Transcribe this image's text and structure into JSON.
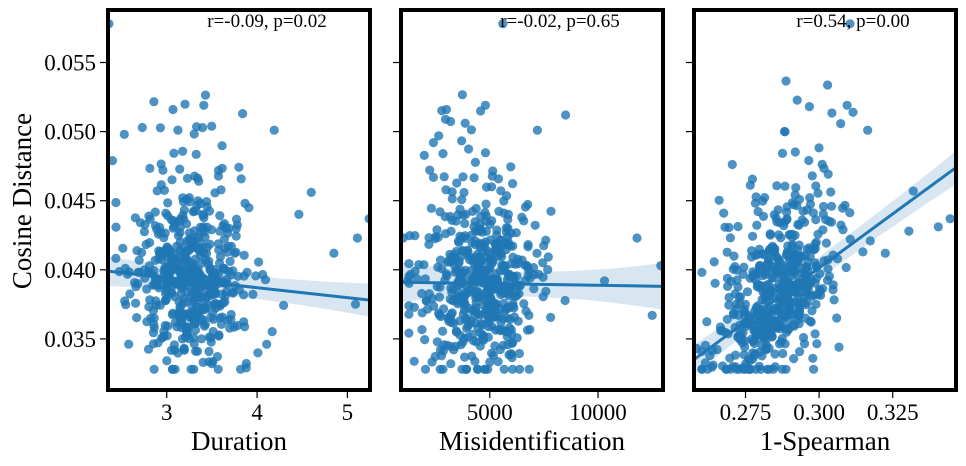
{
  "chart_data": {
    "type": "scatter",
    "ylabel": "Cosine Distance",
    "y_ticks": [
      "0.035",
      "0.040",
      "0.045",
      "0.050",
      "0.055"
    ],
    "ylim": [
      0.0313,
      0.0588
    ],
    "shared_y": true,
    "color": "#1f77b4",
    "ci_color": "#1f77b4",
    "grid": false,
    "panels": [
      {
        "xlabel": "Duration",
        "annotation": "r=-0.09, p=0.02",
        "xlim": [
          2.35,
          5.25
        ],
        "x_ticks": [
          "3",
          "4",
          "5"
        ],
        "x_tick_values": [
          3,
          4,
          5
        ],
        "regression": {
          "x": [
            2.35,
            5.25
          ],
          "y": [
            0.0399,
            0.0378
          ],
          "ci_halfwidth": [
            0.0008,
            0.0012
          ]
        },
        "n_points": 520,
        "outliers": [
          {
            "x": 2.36,
            "y": 0.0578
          },
          {
            "x": 3.41,
            "y": 0.0519
          },
          {
            "x": 3.07,
            "y": 0.0516
          },
          {
            "x": 3.84,
            "y": 0.0513
          },
          {
            "x": 2.73,
            "y": 0.0503
          },
          {
            "x": 4.19,
            "y": 0.0501
          },
          {
            "x": 2.53,
            "y": 0.0498
          },
          {
            "x": 2.4,
            "y": 0.0479
          },
          {
            "x": 4.6,
            "y": 0.0456
          },
          {
            "x": 5.24,
            "y": 0.0437
          },
          {
            "x": 5.11,
            "y": 0.0423
          },
          {
            "x": 4.85,
            "y": 0.0412
          },
          {
            "x": 5.09,
            "y": 0.0375
          },
          {
            "x": 3.88,
            "y": 0.0329
          },
          {
            "x": 3.5,
            "y": 0.0332
          }
        ]
      },
      {
        "xlabel": "Misidentification",
        "annotation": "r=-0.02, p=0.65",
        "xlim": [
          900,
          13000
        ],
        "x_ticks": [
          "5000",
          "10000"
        ],
        "x_tick_values": [
          5000,
          10000
        ],
        "regression": {
          "x": [
            900,
            13000
          ],
          "y": [
            0.0391,
            0.0388
          ],
          "ci_halfwidth": [
            0.0009,
            0.0017
          ]
        },
        "n_points": 520,
        "outliers": [
          {
            "x": 5600,
            "y": 0.0578
          },
          {
            "x": 4800,
            "y": 0.0519
          },
          {
            "x": 8500,
            "y": 0.0512
          },
          {
            "x": 7200,
            "y": 0.0501
          },
          {
            "x": 3000,
            "y": 0.0516
          },
          {
            "x": 1000,
            "y": 0.0423
          },
          {
            "x": 11800,
            "y": 0.0423
          },
          {
            "x": 12900,
            "y": 0.0403
          },
          {
            "x": 12500,
            "y": 0.0367
          },
          {
            "x": 10300,
            "y": 0.0392
          },
          {
            "x": 1200,
            "y": 0.0392
          },
          {
            "x": 3200,
            "y": 0.0332
          }
        ]
      },
      {
        "xlabel": "1-Spearman",
        "annotation": "r=0.54, p=0.00",
        "xlim": [
          0.2575,
          0.3465
        ],
        "x_ticks": [
          "0.275",
          "0.300",
          "0.325"
        ],
        "x_tick_values": [
          0.275,
          0.3,
          0.325
        ],
        "regression": {
          "x": [
            0.2575,
            0.3465
          ],
          "y": [
            0.0335,
            0.0474
          ],
          "ci_halfwidth": [
            0.0008,
            0.0012
          ]
        },
        "n_points": 520,
        "outliers": [
          {
            "x": 0.3105,
            "y": 0.0578
          },
          {
            "x": 0.3095,
            "y": 0.0519
          },
          {
            "x": 0.3115,
            "y": 0.0514
          },
          {
            "x": 0.3165,
            "y": 0.0501
          },
          {
            "x": 0.332,
            "y": 0.0457
          },
          {
            "x": 0.3445,
            "y": 0.0437
          },
          {
            "x": 0.3405,
            "y": 0.0431
          },
          {
            "x": 0.2585,
            "y": 0.0343
          },
          {
            "x": 0.264,
            "y": 0.0331
          },
          {
            "x": 0.3305,
            "y": 0.0428
          },
          {
            "x": 0.3225,
            "y": 0.0412
          }
        ]
      }
    ]
  }
}
